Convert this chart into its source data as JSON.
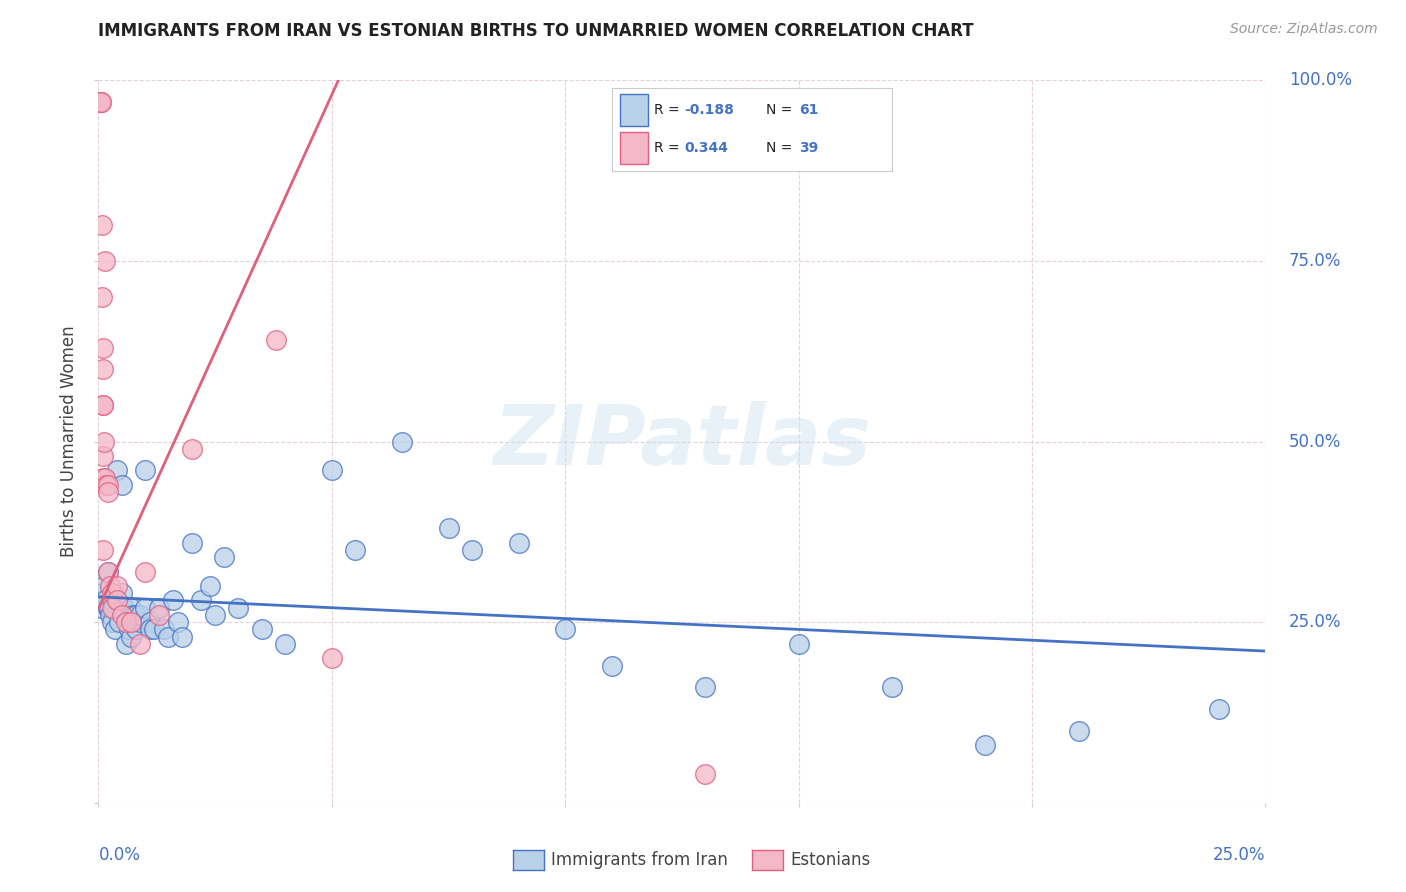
{
  "title": "IMMIGRANTS FROM IRAN VS ESTONIAN BIRTHS TO UNMARRIED WOMEN CORRELATION CHART",
  "source": "Source: ZipAtlas.com",
  "watermark": "ZIPatlas",
  "blue_color": "#b8d0e8",
  "blue_line_color": "#4472c4",
  "pink_color": "#f4b8c8",
  "pink_line_color": "#e06080",
  "blue_scatter_x": [
    0.0008,
    0.001,
    0.0012,
    0.0015,
    0.002,
    0.002,
    0.0022,
    0.0025,
    0.003,
    0.003,
    0.0032,
    0.0035,
    0.004,
    0.004,
    0.0045,
    0.005,
    0.005,
    0.0055,
    0.006,
    0.006,
    0.0065,
    0.007,
    0.007,
    0.0075,
    0.008,
    0.008,
    0.009,
    0.009,
    0.01,
    0.01,
    0.011,
    0.011,
    0.012,
    0.013,
    0.014,
    0.015,
    0.016,
    0.017,
    0.018,
    0.02,
    0.022,
    0.024,
    0.025,
    0.027,
    0.03,
    0.035,
    0.04,
    0.05,
    0.055,
    0.065,
    0.075,
    0.08,
    0.09,
    0.1,
    0.11,
    0.13,
    0.15,
    0.17,
    0.19,
    0.21,
    0.24
  ],
  "blue_scatter_y": [
    0.27,
    0.29,
    0.3,
    0.28,
    0.32,
    0.27,
    0.27,
    0.26,
    0.28,
    0.25,
    0.27,
    0.24,
    0.46,
    0.28,
    0.25,
    0.44,
    0.29,
    0.27,
    0.26,
    0.22,
    0.24,
    0.27,
    0.23,
    0.26,
    0.26,
    0.24,
    0.25,
    0.26,
    0.46,
    0.27,
    0.25,
    0.24,
    0.24,
    0.27,
    0.24,
    0.23,
    0.28,
    0.25,
    0.23,
    0.36,
    0.28,
    0.3,
    0.26,
    0.34,
    0.27,
    0.24,
    0.22,
    0.46,
    0.35,
    0.5,
    0.38,
    0.35,
    0.36,
    0.24,
    0.19,
    0.16,
    0.22,
    0.16,
    0.08,
    0.1,
    0.13
  ],
  "pink_scatter_x": [
    0.0003,
    0.0003,
    0.0003,
    0.0003,
    0.0003,
    0.0003,
    0.0005,
    0.0005,
    0.0007,
    0.0007,
    0.0009,
    0.0009,
    0.001,
    0.001,
    0.001,
    0.001,
    0.001,
    0.0013,
    0.0015,
    0.0015,
    0.0017,
    0.002,
    0.002,
    0.002,
    0.0025,
    0.003,
    0.003,
    0.004,
    0.004,
    0.005,
    0.006,
    0.007,
    0.009,
    0.01,
    0.013,
    0.02,
    0.038,
    0.05,
    0.13
  ],
  "pink_scatter_y": [
    0.97,
    0.97,
    0.97,
    0.97,
    0.97,
    0.97,
    0.97,
    0.97,
    0.8,
    0.7,
    0.63,
    0.6,
    0.55,
    0.55,
    0.48,
    0.45,
    0.35,
    0.5,
    0.75,
    0.45,
    0.44,
    0.44,
    0.43,
    0.32,
    0.3,
    0.29,
    0.27,
    0.3,
    0.28,
    0.26,
    0.25,
    0.25,
    0.22,
    0.32,
    0.26,
    0.49,
    0.64,
    0.2,
    0.04
  ],
  "xlim": [
    0.0,
    0.25
  ],
  "ylim": [
    0.0,
    1.0
  ],
  "xticks": [
    0.0,
    0.05,
    0.1,
    0.15,
    0.2,
    0.25
  ],
  "yticks": [
    0.0,
    0.25,
    0.5,
    0.75,
    1.0
  ],
  "blue_trend_x": [
    0.0,
    0.25
  ],
  "blue_trend_y": [
    0.285,
    0.21
  ],
  "pink_trend_x": [
    -0.002,
    0.05
  ],
  "pink_trend_y": [
    0.24,
    0.98
  ]
}
